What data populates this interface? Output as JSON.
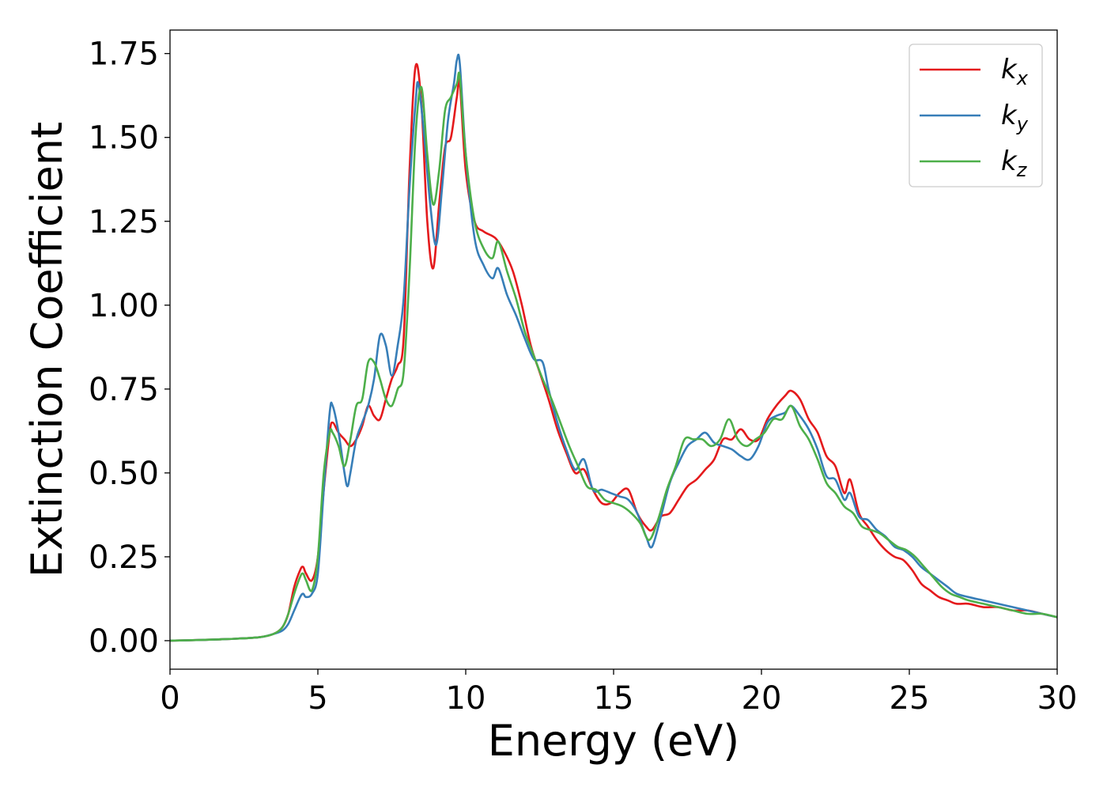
{
  "chart_data": {
    "type": "line",
    "title": "",
    "xlabel": "Energy (eV)",
    "ylabel": "Extinction Coefficient",
    "xlim": [
      0,
      30
    ],
    "ylim": [
      -0.085,
      1.82
    ],
    "xticks": [
      0,
      5,
      10,
      15,
      20,
      25,
      30
    ],
    "xtick_labels": [
      "0",
      "5",
      "10",
      "15",
      "20",
      "25",
      "30"
    ],
    "yticks": [
      0.0,
      0.25,
      0.5,
      0.75,
      1.0,
      1.25,
      1.5,
      1.75
    ],
    "ytick_labels": [
      "0.00",
      "0.25",
      "0.50",
      "0.75",
      "1.00",
      "1.25",
      "1.50",
      "1.75"
    ],
    "grid": false,
    "legend_position": "top-right",
    "series": [
      {
        "name": "k_x",
        "label_main": "k",
        "label_sub": "x",
        "color": "#e41a1c",
        "x": [
          0,
          1,
          2,
          3,
          3.5,
          3.8,
          4.0,
          4.2,
          4.4,
          4.5,
          4.6,
          4.8,
          5.0,
          5.2,
          5.4,
          5.5,
          5.7,
          5.9,
          6.1,
          6.3,
          6.5,
          6.7,
          6.9,
          7.1,
          7.3,
          7.5,
          7.7,
          7.9,
          8.1,
          8.3,
          8.5,
          8.7,
          8.9,
          9.1,
          9.3,
          9.5,
          9.7,
          9.8,
          10.0,
          10.3,
          10.6,
          11.0,
          11.3,
          11.6,
          11.9,
          12.2,
          12.5,
          12.8,
          13.1,
          13.4,
          13.7,
          14.0,
          14.3,
          14.6,
          14.9,
          15.2,
          15.5,
          15.8,
          16.1,
          16.3,
          16.6,
          16.9,
          17.2,
          17.5,
          17.8,
          18.1,
          18.4,
          18.7,
          19.0,
          19.3,
          19.6,
          19.9,
          20.2,
          20.5,
          20.8,
          21.0,
          21.3,
          21.6,
          21.9,
          22.2,
          22.5,
          22.8,
          23.0,
          23.3,
          23.6,
          23.9,
          24.2,
          24.5,
          24.8,
          25.1,
          25.4,
          25.7,
          26.0,
          26.3,
          26.6,
          27.0,
          27.5,
          28.0,
          28.5,
          29.0,
          29.5,
          30.0
        ],
        "y": [
          0.0,
          0.002,
          0.005,
          0.01,
          0.02,
          0.04,
          0.08,
          0.16,
          0.21,
          0.22,
          0.2,
          0.18,
          0.25,
          0.45,
          0.62,
          0.65,
          0.62,
          0.6,
          0.58,
          0.6,
          0.64,
          0.7,
          0.67,
          0.66,
          0.72,
          0.78,
          0.82,
          0.9,
          1.4,
          1.71,
          1.6,
          1.25,
          1.11,
          1.3,
          1.47,
          1.5,
          1.62,
          1.66,
          1.4,
          1.25,
          1.22,
          1.2,
          1.16,
          1.1,
          1.0,
          0.88,
          0.8,
          0.72,
          0.63,
          0.56,
          0.5,
          0.51,
          0.45,
          0.41,
          0.41,
          0.44,
          0.45,
          0.38,
          0.34,
          0.33,
          0.37,
          0.38,
          0.42,
          0.46,
          0.48,
          0.51,
          0.54,
          0.6,
          0.6,
          0.63,
          0.6,
          0.6,
          0.66,
          0.7,
          0.73,
          0.745,
          0.72,
          0.66,
          0.62,
          0.55,
          0.52,
          0.44,
          0.48,
          0.38,
          0.34,
          0.3,
          0.27,
          0.25,
          0.24,
          0.21,
          0.17,
          0.15,
          0.13,
          0.12,
          0.11,
          0.11,
          0.1,
          0.1,
          0.09,
          0.09,
          0.08,
          0.07
        ]
      },
      {
        "name": "k_y",
        "label_main": "k",
        "label_sub": "y",
        "color": "#377eb8",
        "x": [
          0,
          1,
          2,
          3,
          3.5,
          3.8,
          4.0,
          4.2,
          4.4,
          4.5,
          4.6,
          4.8,
          5.0,
          5.2,
          5.4,
          5.5,
          5.7,
          5.9,
          6.0,
          6.1,
          6.3,
          6.5,
          6.7,
          6.9,
          7.1,
          7.3,
          7.5,
          7.7,
          7.9,
          8.1,
          8.3,
          8.4,
          8.6,
          8.8,
          9.0,
          9.2,
          9.4,
          9.6,
          9.7,
          9.8,
          10.0,
          10.3,
          10.6,
          10.9,
          11.1,
          11.4,
          11.7,
          12.0,
          12.3,
          12.6,
          12.8,
          13.1,
          13.4,
          13.7,
          14.0,
          14.3,
          14.6,
          14.9,
          15.2,
          15.5,
          15.8,
          16.1,
          16.3,
          16.6,
          16.9,
          17.2,
          17.5,
          17.8,
          18.1,
          18.4,
          18.7,
          19.0,
          19.3,
          19.6,
          19.9,
          20.2,
          20.5,
          20.8,
          21.0,
          21.3,
          21.6,
          21.9,
          22.2,
          22.5,
          22.8,
          23.0,
          23.3,
          23.6,
          23.9,
          24.2,
          24.5,
          24.8,
          25.1,
          25.4,
          25.7,
          26.0,
          26.3,
          26.6,
          27.0,
          27.5,
          28.0,
          28.5,
          29.0,
          29.5,
          30.0
        ],
        "y": [
          0.0,
          0.002,
          0.005,
          0.01,
          0.02,
          0.03,
          0.05,
          0.09,
          0.13,
          0.14,
          0.13,
          0.14,
          0.2,
          0.45,
          0.68,
          0.7,
          0.62,
          0.5,
          0.46,
          0.5,
          0.6,
          0.65,
          0.7,
          0.78,
          0.91,
          0.88,
          0.79,
          0.88,
          1.02,
          1.35,
          1.6,
          1.66,
          1.5,
          1.3,
          1.18,
          1.35,
          1.55,
          1.66,
          1.73,
          1.72,
          1.45,
          1.2,
          1.12,
          1.08,
          1.11,
          1.03,
          0.97,
          0.9,
          0.84,
          0.83,
          0.75,
          0.65,
          0.57,
          0.51,
          0.54,
          0.45,
          0.45,
          0.44,
          0.43,
          0.42,
          0.38,
          0.31,
          0.28,
          0.37,
          0.47,
          0.53,
          0.58,
          0.6,
          0.62,
          0.59,
          0.58,
          0.57,
          0.55,
          0.54,
          0.58,
          0.65,
          0.67,
          0.68,
          0.7,
          0.67,
          0.63,
          0.57,
          0.49,
          0.48,
          0.42,
          0.44,
          0.37,
          0.36,
          0.33,
          0.31,
          0.28,
          0.27,
          0.25,
          0.22,
          0.2,
          0.18,
          0.16,
          0.14,
          0.13,
          0.12,
          0.11,
          0.1,
          0.09,
          0.08,
          0.07
        ]
      },
      {
        "name": "k_z",
        "label_main": "k",
        "label_sub": "z",
        "color": "#4daf4a",
        "x": [
          0,
          1,
          2,
          3,
          3.5,
          3.8,
          4.0,
          4.2,
          4.4,
          4.5,
          4.6,
          4.8,
          5.0,
          5.2,
          5.4,
          5.5,
          5.7,
          5.9,
          6.1,
          6.3,
          6.5,
          6.7,
          6.9,
          7.1,
          7.3,
          7.5,
          7.7,
          7.9,
          8.1,
          8.3,
          8.5,
          8.7,
          8.9,
          9.1,
          9.3,
          9.5,
          9.7,
          9.8,
          10.0,
          10.3,
          10.6,
          10.9,
          11.1,
          11.4,
          11.7,
          12.0,
          12.3,
          12.6,
          12.9,
          13.2,
          13.5,
          13.8,
          14.1,
          14.4,
          14.7,
          15.0,
          15.3,
          15.6,
          15.9,
          16.2,
          16.5,
          16.8,
          17.1,
          17.4,
          17.7,
          18.0,
          18.3,
          18.6,
          18.9,
          19.2,
          19.5,
          19.8,
          20.1,
          20.4,
          20.7,
          21.0,
          21.3,
          21.6,
          21.9,
          22.2,
          22.5,
          22.8,
          23.1,
          23.4,
          23.7,
          24.0,
          24.3,
          24.6,
          24.9,
          25.2,
          25.5,
          25.8,
          26.1,
          26.4,
          26.7,
          27.0,
          27.5,
          28.0,
          28.5,
          29.0,
          29.5,
          30.0
        ],
        "y": [
          0.0,
          0.002,
          0.005,
          0.01,
          0.02,
          0.04,
          0.08,
          0.14,
          0.19,
          0.2,
          0.18,
          0.15,
          0.25,
          0.5,
          0.62,
          0.62,
          0.58,
          0.52,
          0.6,
          0.7,
          0.72,
          0.83,
          0.83,
          0.78,
          0.72,
          0.7,
          0.75,
          0.8,
          1.1,
          1.5,
          1.65,
          1.45,
          1.3,
          1.4,
          1.58,
          1.62,
          1.66,
          1.68,
          1.45,
          1.25,
          1.17,
          1.14,
          1.19,
          1.1,
          1.02,
          0.92,
          0.85,
          0.78,
          0.72,
          0.65,
          0.58,
          0.52,
          0.46,
          0.45,
          0.42,
          0.41,
          0.4,
          0.38,
          0.35,
          0.3,
          0.36,
          0.45,
          0.52,
          0.6,
          0.6,
          0.6,
          0.58,
          0.6,
          0.66,
          0.6,
          0.58,
          0.6,
          0.62,
          0.66,
          0.66,
          0.7,
          0.64,
          0.6,
          0.54,
          0.47,
          0.44,
          0.4,
          0.38,
          0.34,
          0.33,
          0.32,
          0.3,
          0.28,
          0.27,
          0.25,
          0.22,
          0.19,
          0.16,
          0.14,
          0.13,
          0.12,
          0.11,
          0.1,
          0.09,
          0.08,
          0.08,
          0.07
        ]
      }
    ]
  }
}
